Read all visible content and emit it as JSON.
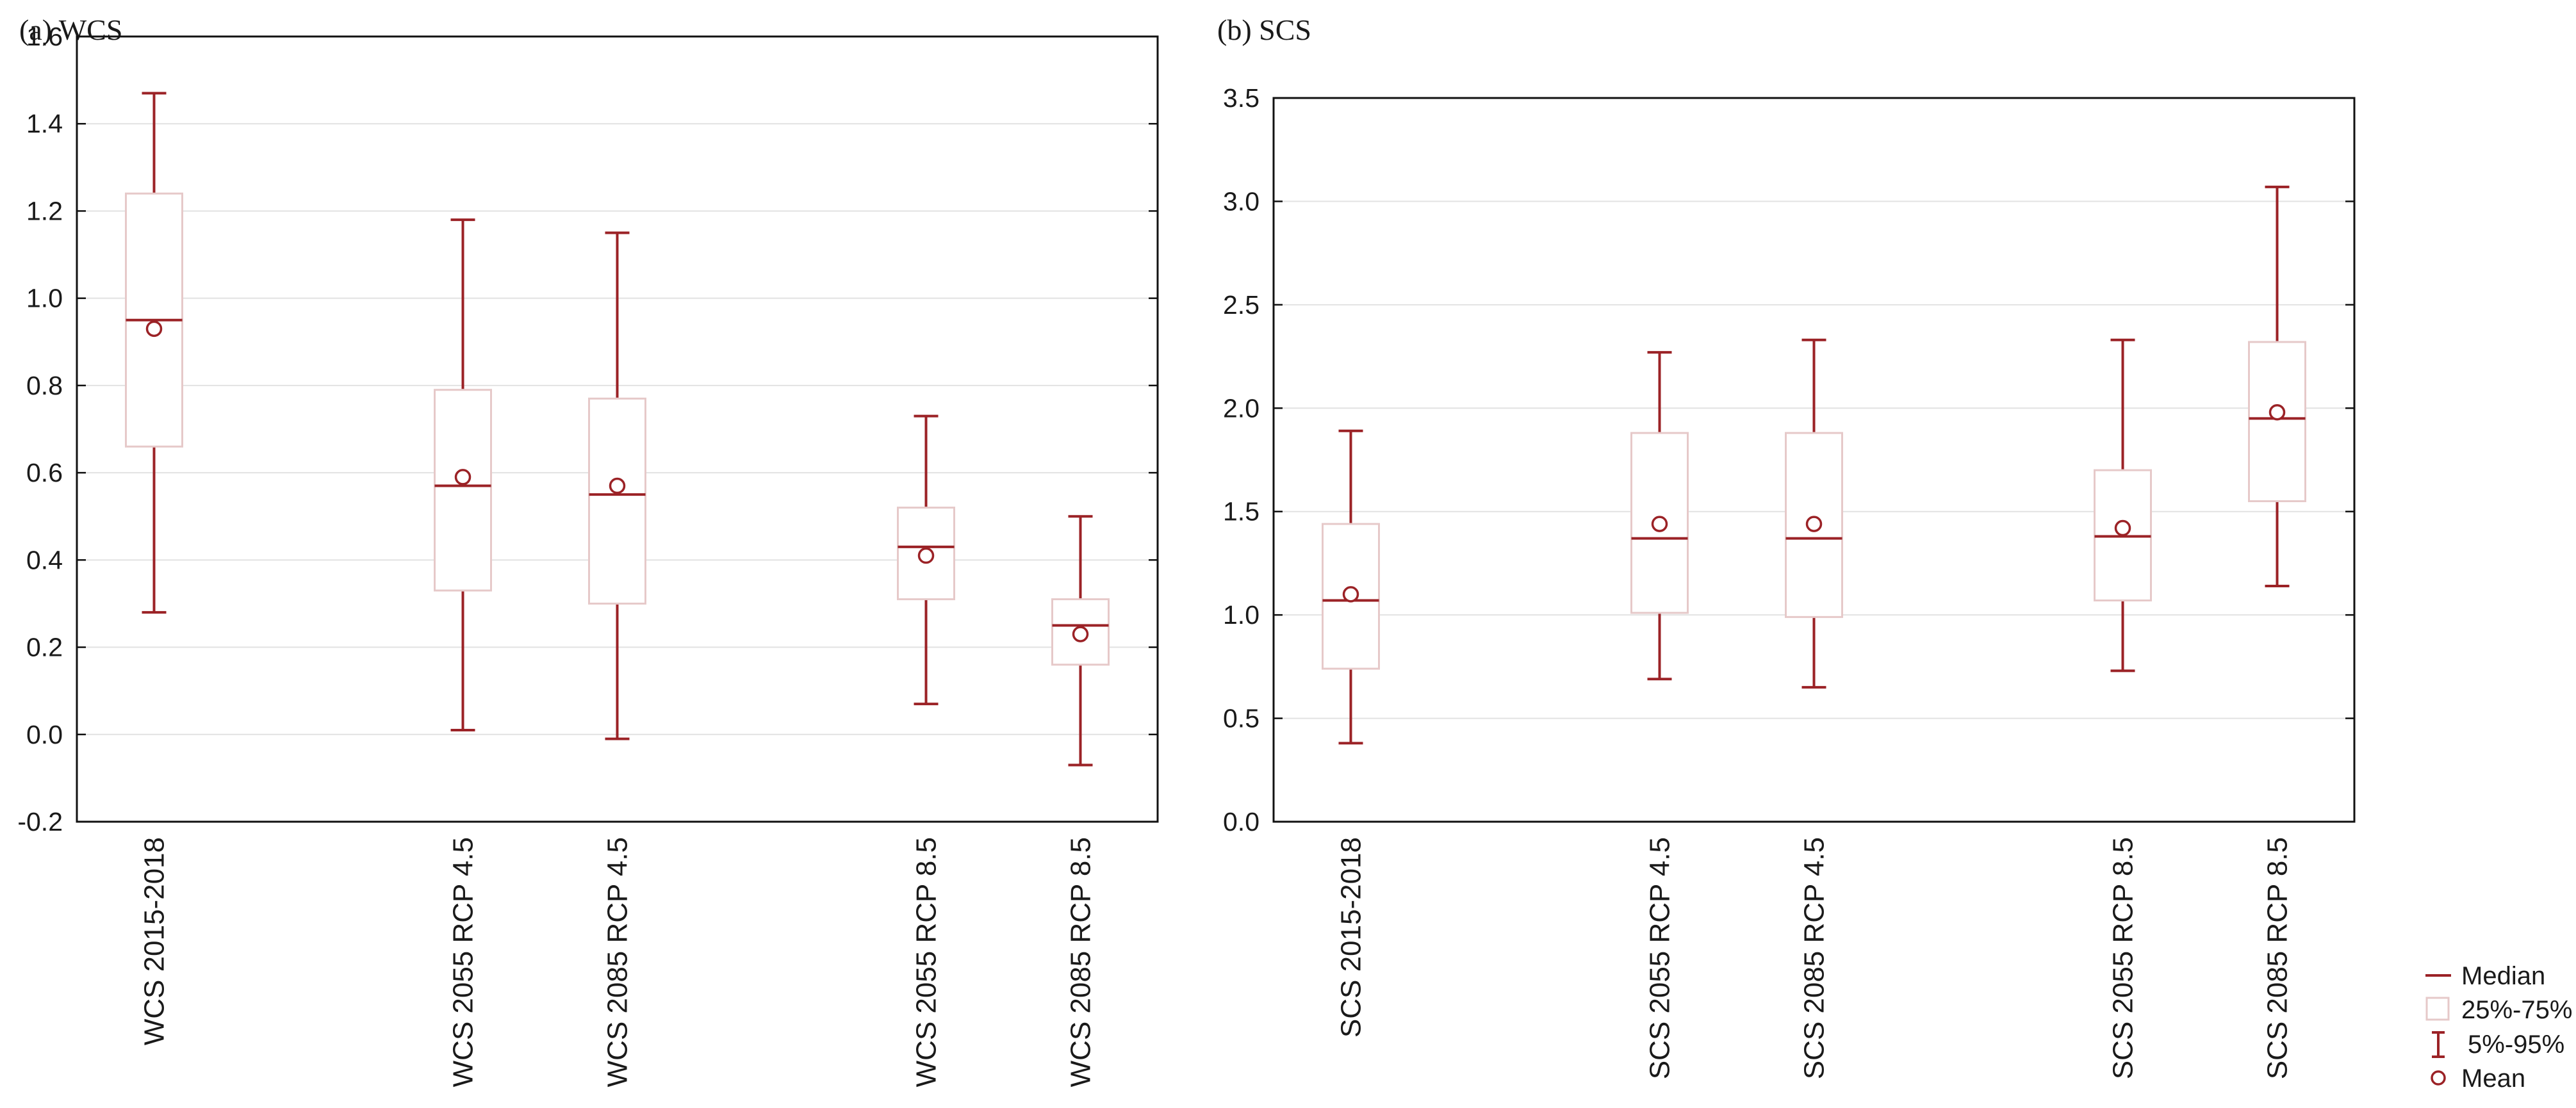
{
  "chart_data": [
    {
      "type": "boxplot",
      "title": "(a) WCS",
      "xlabel": "",
      "ylabel": "",
      "ylim": [
        -0.2,
        1.6
      ],
      "yticks": [
        -0.2,
        0.0,
        0.2,
        0.4,
        0.6,
        0.8,
        1.0,
        1.2,
        1.4,
        1.6
      ],
      "ytick_labels": [
        "-0.2",
        "0.0",
        "0.2",
        "0.4",
        "0.6",
        "0.8",
        "1.0",
        "1.2",
        "1.4",
        "1.6"
      ],
      "grid": true,
      "categories": [
        "WCS 2015-2018",
        "WCS 2055 RCP 4.5",
        "WCS 2085 RCP 4.5",
        "WCS 2055 RCP 8.5",
        "WCS 2085 RCP 8.5"
      ],
      "positions": [
        0.5,
        2.5,
        3.5,
        5.5,
        6.5
      ],
      "xlim": [
        0,
        7
      ],
      "boxes": [
        {
          "p5": 0.28,
          "q1": 0.66,
          "median": 0.95,
          "q3": 1.24,
          "p95": 1.47,
          "mean": 0.93
        },
        {
          "p5": 0.01,
          "q1": 0.33,
          "median": 0.57,
          "q3": 0.79,
          "p95": 1.18,
          "mean": 0.59
        },
        {
          "p5": -0.01,
          "q1": 0.3,
          "median": 0.55,
          "q3": 0.77,
          "p95": 1.15,
          "mean": 0.57
        },
        {
          "p5": 0.07,
          "q1": 0.31,
          "median": 0.43,
          "q3": 0.52,
          "p95": 0.73,
          "mean": 0.41
        },
        {
          "p5": -0.07,
          "q1": 0.16,
          "median": 0.25,
          "q3": 0.31,
          "p95": 0.5,
          "mean": 0.23
        }
      ]
    },
    {
      "type": "boxplot",
      "title": "(b) SCS",
      "xlabel": "",
      "ylabel": "",
      "ylim": [
        0.0,
        3.5
      ],
      "yticks": [
        0.0,
        0.5,
        1.0,
        1.5,
        2.0,
        2.5,
        3.0,
        3.5
      ],
      "ytick_labels": [
        "0.0",
        "0.5",
        "1.0",
        "1.5",
        "2.0",
        "2.5",
        "3.0",
        "3.5"
      ],
      "grid": true,
      "categories": [
        "SCS 2015-2018",
        "SCS 2055 RCP 4.5",
        "SCS 2085 RCP 4.5",
        "SCS 2055 RCP 8.5",
        "SCS 2085 RCP 8.5"
      ],
      "positions": [
        0.5,
        2.5,
        3.5,
        5.5,
        6.5
      ],
      "xlim": [
        0,
        7
      ],
      "boxes": [
        {
          "p5": 0.38,
          "q1": 0.74,
          "median": 1.07,
          "q3": 1.44,
          "p95": 1.89,
          "mean": 1.1
        },
        {
          "p5": 0.69,
          "q1": 1.01,
          "median": 1.37,
          "q3": 1.88,
          "p95": 2.27,
          "mean": 1.44
        },
        {
          "p5": 0.65,
          "q1": 0.99,
          "median": 1.37,
          "q3": 1.88,
          "p95": 2.33,
          "mean": 1.44
        },
        {
          "p5": 0.73,
          "q1": 1.07,
          "median": 1.38,
          "q3": 1.7,
          "p95": 2.33,
          "mean": 1.42
        },
        {
          "p5": 1.14,
          "q1": 1.55,
          "median": 1.95,
          "q3": 2.32,
          "p95": 3.07,
          "mean": 1.98
        }
      ]
    }
  ],
  "legend": {
    "placement": "bottom-right",
    "items": [
      {
        "key": "median",
        "label": "Median"
      },
      {
        "key": "box",
        "label": "25%-75%"
      },
      {
        "key": "whisker",
        "label": "5%-95%"
      },
      {
        "key": "mean",
        "label": "Mean"
      }
    ]
  },
  "colors": {
    "line": "#9b2226",
    "box": "#e6c9c9",
    "grid": "#e2e2e2",
    "axis": "#111111",
    "text": "#1a1a1a"
  }
}
